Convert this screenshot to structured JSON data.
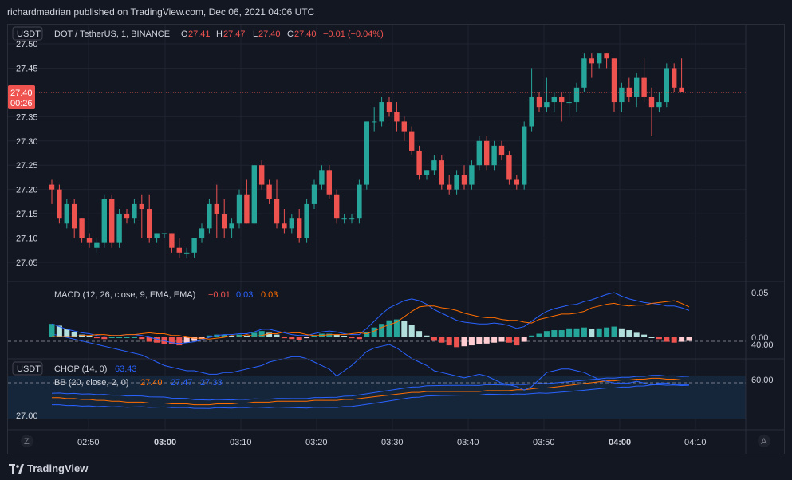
{
  "header": {
    "publisher": "richardmadrian published on TradingView.com, Dec 06, 2021 04:06 UTC"
  },
  "footer": {
    "brand": "TradingView"
  },
  "colors": {
    "bg": "#131722",
    "grid": "#1f2330",
    "up": "#26a69a",
    "down": "#ef5350",
    "text": "#d1d4dc",
    "macd": "#2962ff",
    "signal": "#ff6d00",
    "bb_upper": "#2962ff",
    "bb_basis": "#ff6d00",
    "chop": "#2962ff"
  },
  "legend": {
    "currency": "USDT",
    "symbol": "DOT / TetherUS, 1, BINANCE",
    "o_label": "O",
    "o_value": "27.41",
    "h_label": "H",
    "h_value": "27.47",
    "l_label": "L",
    "l_value": "27.40",
    "c_label": "C",
    "c_value": "27.40",
    "change": "−0.01 (−0.04%)"
  },
  "price_tag": {
    "price": "27.40",
    "countdown": "00:26"
  },
  "macd_legend": {
    "label": "MACD (12, 26, close, 9, EMA, EMA)",
    "hist": "−0.01",
    "macd": "0.03",
    "signal": "0.03"
  },
  "chop_legend": {
    "currency": "USDT",
    "label": "CHOP (14, 0)",
    "value": "63.43"
  },
  "bb_legend": {
    "label": "BB (20, close, 2, 0)",
    "basis": "27.40",
    "upper": "27.47",
    "lower": "27.33"
  },
  "nav": {
    "zoom_label": "Z",
    "auto_label": "A"
  },
  "chart_data": {
    "type": "candlestick",
    "title": "DOT / TetherUS, 1, BINANCE",
    "price_axis": {
      "ticks": [
        "27.50",
        "27.45",
        "27.40",
        "27.35",
        "27.30",
        "27.25",
        "27.20",
        "27.15",
        "27.10",
        "27.05"
      ],
      "range": [
        27.02,
        27.5
      ]
    },
    "time_axis": {
      "ticks": [
        "02:50",
        "03:00",
        "03:10",
        "03:20",
        "03:30",
        "03:40",
        "03:50",
        "04:00",
        "04:10"
      ]
    },
    "ohlc": [
      [
        27.21,
        27.22,
        27.17,
        27.2
      ],
      [
        27.2,
        27.21,
        27.13,
        27.14
      ],
      [
        27.13,
        27.18,
        27.12,
        27.17
      ],
      [
        27.17,
        27.18,
        27.1,
        27.12
      ],
      [
        27.14,
        27.14,
        27.09,
        27.1
      ],
      [
        27.1,
        27.11,
        27.08,
        27.09
      ],
      [
        27.08,
        27.1,
        27.07,
        27.09
      ],
      [
        27.09,
        27.19,
        27.08,
        27.18
      ],
      [
        27.18,
        27.19,
        27.08,
        27.09
      ],
      [
        27.09,
        27.16,
        27.08,
        27.15
      ],
      [
        27.15,
        27.16,
        27.13,
        27.14
      ],
      [
        27.14,
        27.18,
        27.13,
        27.17
      ],
      [
        27.17,
        27.19,
        27.1,
        27.16
      ],
      [
        27.16,
        27.19,
        27.09,
        27.1
      ],
      [
        27.1,
        27.11,
        27.09,
        27.11
      ],
      [
        27.11,
        27.11,
        27.1,
        27.11
      ],
      [
        27.11,
        27.11,
        27.07,
        27.08
      ],
      [
        27.08,
        27.1,
        27.06,
        27.07
      ],
      [
        27.07,
        27.08,
        27.06,
        27.07
      ],
      [
        27.07,
        27.1,
        27.06,
        27.1
      ],
      [
        27.1,
        27.13,
        27.09,
        27.12
      ],
      [
        27.12,
        27.18,
        27.11,
        27.17
      ],
      [
        27.17,
        27.21,
        27.1,
        27.15
      ],
      [
        27.15,
        27.18,
        27.1,
        27.12
      ],
      [
        27.12,
        27.14,
        27.1,
        27.13
      ],
      [
        27.13,
        27.2,
        27.12,
        27.19
      ],
      [
        27.19,
        27.22,
        27.13,
        27.13
      ],
      [
        27.13,
        27.25,
        27.13,
        27.25
      ],
      [
        27.25,
        27.26,
        27.2,
        27.21
      ],
      [
        27.21,
        27.22,
        27.17,
        27.18
      ],
      [
        27.18,
        27.22,
        27.12,
        27.13
      ],
      [
        27.13,
        27.16,
        27.11,
        27.12
      ],
      [
        27.12,
        27.15,
        27.11,
        27.14
      ],
      [
        27.14,
        27.16,
        27.09,
        27.1
      ],
      [
        27.1,
        27.18,
        27.09,
        27.17
      ],
      [
        27.17,
        27.22,
        27.16,
        27.21
      ],
      [
        27.21,
        27.25,
        27.2,
        27.24
      ],
      [
        27.24,
        27.25,
        27.18,
        27.19
      ],
      [
        27.19,
        27.2,
        27.13,
        27.14
      ],
      [
        27.14,
        27.15,
        27.13,
        27.14
      ],
      [
        27.14,
        27.15,
        27.13,
        27.14
      ],
      [
        27.14,
        27.22,
        27.13,
        27.21
      ],
      [
        27.21,
        27.34,
        27.2,
        27.34
      ],
      [
        27.34,
        27.37,
        27.32,
        27.34
      ],
      [
        27.34,
        27.39,
        27.33,
        27.38
      ],
      [
        27.38,
        27.39,
        27.35,
        27.36
      ],
      [
        27.36,
        27.38,
        27.32,
        27.34
      ],
      [
        27.34,
        27.35,
        27.3,
        27.32
      ],
      [
        27.32,
        27.33,
        27.27,
        27.28
      ],
      [
        27.28,
        27.29,
        27.22,
        27.23
      ],
      [
        27.23,
        27.24,
        27.22,
        27.24
      ],
      [
        27.24,
        27.27,
        27.23,
        27.26
      ],
      [
        27.26,
        27.27,
        27.2,
        27.21
      ],
      [
        27.21,
        27.23,
        27.19,
        27.2
      ],
      [
        27.2,
        27.24,
        27.19,
        27.23
      ],
      [
        27.23,
        27.25,
        27.2,
        27.21
      ],
      [
        27.21,
        27.26,
        27.2,
        27.25
      ],
      [
        27.25,
        27.31,
        27.24,
        27.3
      ],
      [
        27.3,
        27.31,
        27.24,
        27.25
      ],
      [
        27.25,
        27.3,
        27.24,
        27.29
      ],
      [
        27.29,
        27.3,
        27.26,
        27.27
      ],
      [
        27.27,
        27.28,
        27.21,
        27.22
      ],
      [
        27.22,
        27.23,
        27.2,
        27.21
      ],
      [
        27.21,
        27.34,
        27.2,
        27.33
      ],
      [
        27.33,
        27.45,
        27.32,
        27.39
      ],
      [
        27.39,
        27.4,
        27.36,
        27.37
      ],
      [
        27.37,
        27.43,
        27.36,
        27.38
      ],
      [
        27.38,
        27.4,
        27.36,
        27.39
      ],
      [
        27.39,
        27.4,
        27.34,
        27.38
      ],
      [
        27.38,
        27.4,
        27.35,
        27.38
      ],
      [
        27.38,
        27.42,
        27.36,
        27.41
      ],
      [
        27.41,
        27.48,
        27.4,
        27.47
      ],
      [
        27.47,
        27.48,
        27.43,
        27.46
      ],
      [
        27.46,
        27.48,
        27.45,
        27.48
      ],
      [
        27.48,
        27.48,
        27.45,
        27.47
      ],
      [
        27.47,
        27.47,
        27.36,
        27.38
      ],
      [
        27.38,
        27.42,
        27.36,
        27.41
      ],
      [
        27.41,
        27.43,
        27.38,
        27.39
      ],
      [
        27.39,
        27.44,
        27.37,
        27.43
      ],
      [
        27.43,
        27.47,
        27.38,
        27.39
      ],
      [
        27.39,
        27.41,
        27.31,
        27.37
      ],
      [
        27.37,
        27.4,
        27.36,
        27.38
      ],
      [
        27.38,
        27.46,
        27.37,
        27.45
      ],
      [
        27.45,
        27.46,
        27.4,
        27.41
      ],
      [
        27.41,
        27.47,
        27.4,
        27.4
      ]
    ],
    "macd": {
      "scale_ticks": [
        "0.05",
        "0.00"
      ],
      "range": [
        -0.03,
        0.06
      ],
      "histogram": [
        0.015,
        0.013,
        0.009,
        0.006,
        0.003,
        0.001,
        -0.001,
        -0.002,
        0.0,
        0.0,
        0.0,
        0.0,
        -0.002,
        -0.005,
        -0.006,
        -0.008,
        -0.008,
        -0.009,
        -0.006,
        -0.004,
        -0.002,
        0.002,
        0.003,
        0.003,
        0.001,
        0.003,
        0.001,
        0.005,
        0.007,
        0.005,
        0.003,
        -0.001,
        -0.002,
        -0.003,
        -0.001,
        0.002,
        0.004,
        0.004,
        0.003,
        0.001,
        -0.001,
        -0.002,
        0.006,
        0.011,
        0.015,
        0.019,
        0.02,
        0.018,
        0.014,
        0.007,
        0.002,
        -0.004,
        -0.006,
        -0.009,
        -0.011,
        -0.01,
        -0.009,
        -0.008,
        -0.007,
        -0.006,
        -0.005,
        -0.006,
        -0.009,
        -0.005,
        0.002,
        0.004,
        0.007,
        0.008,
        0.008,
        0.01,
        0.01,
        0.011,
        0.009,
        0.01,
        0.011,
        0.012,
        0.01,
        0.008,
        0.005,
        0.003,
        0.0,
        -0.002,
        -0.005,
        -0.006,
        -0.005,
        -0.004
      ],
      "macd_line": [
        0.015,
        0.012,
        0.009,
        0.007,
        0.005,
        0.004,
        0.002,
        0.001,
        0.002,
        0.002,
        0.003,
        0.003,
        0.002,
        0.0,
        -0.002,
        -0.004,
        -0.006,
        -0.007,
        -0.006,
        -0.005,
        -0.003,
        0.0,
        0.002,
        0.003,
        0.003,
        0.004,
        0.004,
        0.006,
        0.009,
        0.009,
        0.007,
        0.005,
        0.003,
        0.002,
        0.002,
        0.004,
        0.006,
        0.007,
        0.006,
        0.004,
        0.003,
        0.003,
        0.01,
        0.018,
        0.026,
        0.033,
        0.037,
        0.041,
        0.043,
        0.041,
        0.037,
        0.031,
        0.027,
        0.023,
        0.019,
        0.017,
        0.016,
        0.015,
        0.015,
        0.016,
        0.015,
        0.013,
        0.01,
        0.012,
        0.018,
        0.024,
        0.029,
        0.032,
        0.034,
        0.036,
        0.037,
        0.04,
        0.042,
        0.045,
        0.048,
        0.05,
        0.046,
        0.043,
        0.041,
        0.039,
        0.038,
        0.037,
        0.035,
        0.035,
        0.033,
        0.03
      ],
      "signal_line": [
        0.001,
        0.001,
        0.001,
        0.001,
        0.002,
        0.002,
        0.003,
        0.003,
        0.002,
        0.002,
        0.003,
        0.003,
        0.004,
        0.005,
        0.004,
        0.004,
        0.002,
        0.002,
        0.0,
        -0.001,
        -0.001,
        -0.002,
        -0.001,
        0.0,
        0.002,
        0.001,
        0.003,
        0.001,
        0.002,
        0.004,
        0.004,
        0.006,
        0.005,
        0.005,
        0.003,
        0.002,
        0.002,
        0.003,
        0.003,
        0.003,
        0.004,
        0.005,
        0.004,
        0.007,
        0.011,
        0.014,
        0.017,
        0.023,
        0.029,
        0.034,
        0.035,
        0.035,
        0.033,
        0.032,
        0.03,
        0.027,
        0.025,
        0.023,
        0.022,
        0.022,
        0.02,
        0.019,
        0.019,
        0.017,
        0.016,
        0.02,
        0.022,
        0.024,
        0.026,
        0.026,
        0.027,
        0.029,
        0.033,
        0.035,
        0.037,
        0.038,
        0.036,
        0.035,
        0.036,
        0.036,
        0.038,
        0.039,
        0.04,
        0.041,
        0.038,
        0.034
      ]
    },
    "chop": {
      "scale_ticks": [
        "60.00",
        "40.00"
      ],
      "range": [
        32,
        70
      ],
      "bands": [
        61.8,
        38.2
      ],
      "values": [
        34,
        35,
        36,
        37,
        38,
        39,
        40,
        41,
        42,
        43,
        44,
        45,
        46,
        48,
        50,
        52,
        53,
        54,
        55,
        55,
        56,
        57,
        57,
        56,
        56,
        55,
        54,
        53,
        52,
        50,
        49,
        48,
        47,
        47,
        48,
        50,
        52,
        54,
        58,
        55,
        52,
        48,
        44,
        42,
        41,
        40,
        42,
        45,
        48,
        50,
        52,
        55,
        56,
        57,
        58,
        59,
        58,
        57,
        58,
        60,
        62,
        63,
        64,
        66,
        64,
        60,
        56,
        55,
        54,
        54,
        55,
        56,
        58,
        60,
        61,
        62,
        62,
        62,
        61,
        62,
        63,
        62,
        62,
        63,
        63,
        63
      ]
    },
    "bb_pane": {
      "price_ticks": [
        "27.00"
      ],
      "basis": [
        27.2,
        27.2,
        27.19,
        27.19,
        27.18,
        27.18,
        27.17,
        27.17,
        27.16,
        27.16,
        27.15,
        27.15,
        27.15,
        27.14,
        27.14,
        27.14,
        27.13,
        27.13,
        27.13,
        27.12,
        27.12,
        27.12,
        27.13,
        27.13,
        27.13,
        27.14,
        27.14,
        27.15,
        27.15,
        27.15,
        27.16,
        27.16,
        27.16,
        27.16,
        27.16,
        27.17,
        27.17,
        27.17,
        27.17,
        27.18,
        27.18,
        27.19,
        27.2,
        27.21,
        27.22,
        27.23,
        27.24,
        27.25,
        27.26,
        27.26,
        27.27,
        27.27,
        27.27,
        27.27,
        27.27,
        27.27,
        27.27,
        27.27,
        27.28,
        27.28,
        27.28,
        27.28,
        27.29,
        27.29,
        27.3,
        27.31,
        27.31,
        27.32,
        27.33,
        27.34,
        27.35,
        27.36,
        27.37,
        27.38,
        27.39,
        27.39,
        27.4,
        27.4,
        27.41,
        27.41,
        27.42,
        27.42,
        27.41,
        27.41,
        27.4,
        27.4
      ]
    }
  }
}
